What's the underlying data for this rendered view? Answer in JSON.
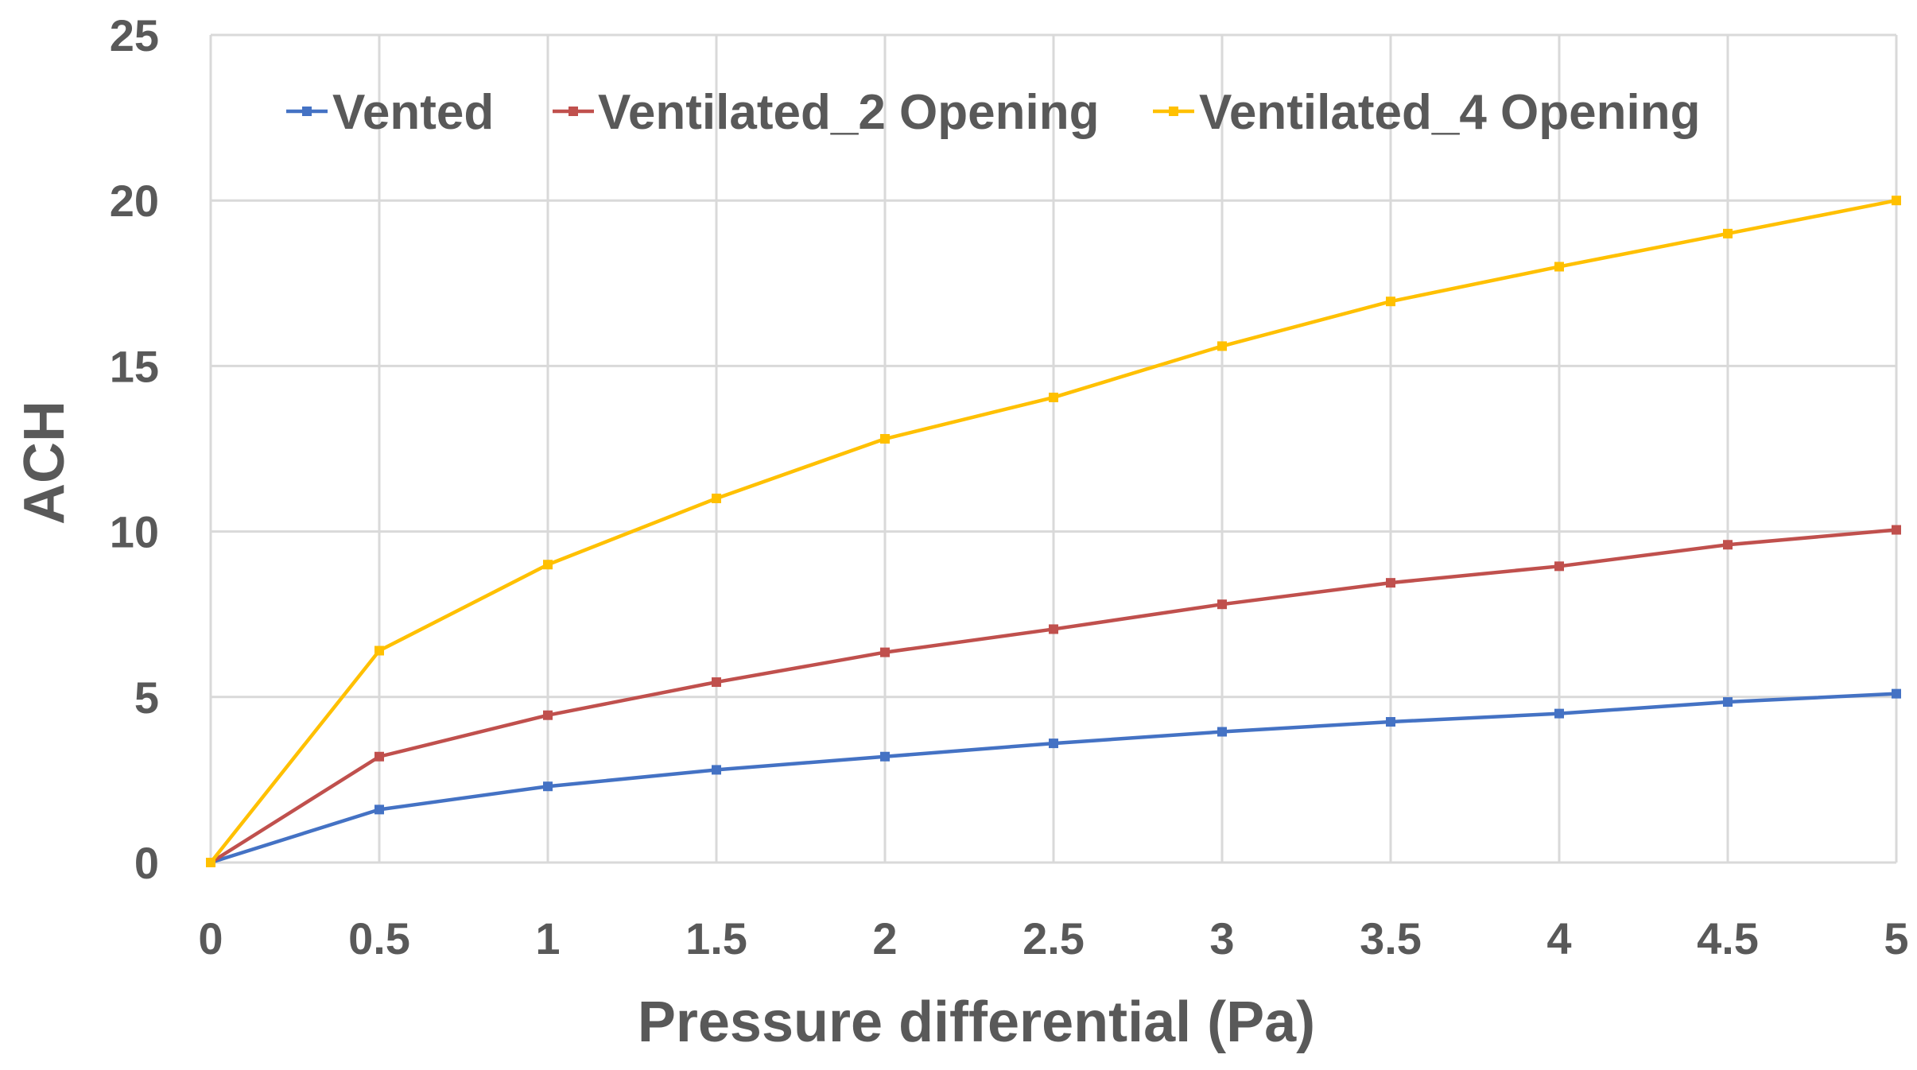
{
  "chart_data": {
    "type": "line",
    "title": "",
    "xlabel": "Pressure differential (Pa)",
    "ylabel": "ACH",
    "xlim": [
      0,
      5
    ],
    "ylim": [
      0,
      25
    ],
    "grid": true,
    "legend_position": "top-left",
    "x_tick_labels": [
      "0",
      "0.5",
      "1",
      "1.5",
      "2",
      "2.5",
      "3",
      "3.5",
      "4",
      "4.5",
      "5"
    ],
    "y_tick_labels": [
      "0",
      "5",
      "10",
      "15",
      "20",
      "25"
    ],
    "x": [
      0,
      0.5,
      1,
      1.5,
      2,
      2.5,
      3,
      3.5,
      4,
      4.5,
      5
    ],
    "series": [
      {
        "name": "Vented",
        "color": "#4472c4",
        "values": [
          0,
          1.6,
          2.3,
          2.8,
          3.2,
          3.6,
          3.95,
          4.25,
          4.5,
          4.85,
          5.1
        ]
      },
      {
        "name": "Ventilated_2 Opening",
        "color": "#c0504d",
        "values": [
          0,
          3.2,
          4.45,
          5.45,
          6.35,
          7.05,
          7.8,
          8.45,
          8.95,
          9.6,
          10.05
        ]
      },
      {
        "name": "Ventilated_4 Opening",
        "color": "#ffc000",
        "values": [
          0,
          6.4,
          9.0,
          11.0,
          12.8,
          14.05,
          15.6,
          16.95,
          18.0,
          19.0,
          20.0
        ]
      }
    ]
  }
}
